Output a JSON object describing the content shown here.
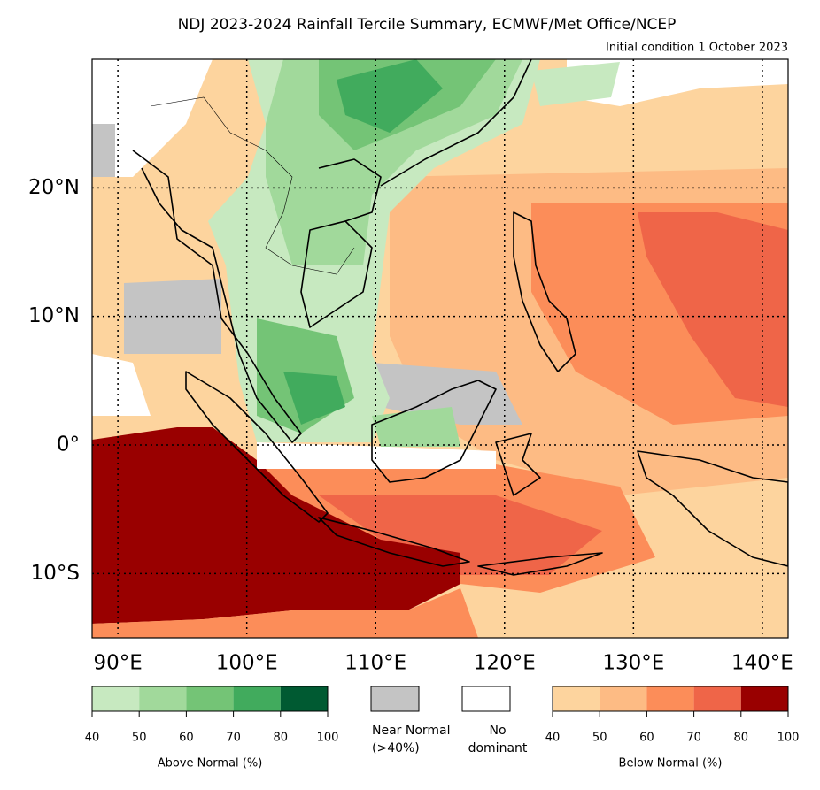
{
  "title": "NDJ 2023-2024 Rainfall Tercile Summary, ECMWF/Met Office/NCEP",
  "subtitle": "Initial condition 1 October 2023",
  "map": {
    "lon_range": [
      88,
      142
    ],
    "lat_range": [
      -15,
      30
    ],
    "lon_ticks": [
      {
        "value": 90,
        "label": "90°E"
      },
      {
        "value": 100,
        "label": "100°E"
      },
      {
        "value": 110,
        "label": "110°E"
      },
      {
        "value": 120,
        "label": "120°E"
      },
      {
        "value": 130,
        "label": "130°E"
      },
      {
        "value": 140,
        "label": "140°E"
      }
    ],
    "lat_ticks": [
      {
        "value": 20,
        "label": "20°N"
      },
      {
        "value": 10,
        "label": "10°N"
      },
      {
        "value": 0,
        "label": "0°"
      },
      {
        "value": -10,
        "label": "10°S"
      }
    ],
    "grid": true
  },
  "legend": {
    "above": {
      "label": "Above Normal (%)",
      "ticks": [
        40,
        50,
        60,
        70,
        80,
        100
      ],
      "colors": [
        "#c7e9c0",
        "#a1d99b",
        "#74c476",
        "#41ab5d",
        "#005a32"
      ]
    },
    "near": {
      "lines": [
        "Near Normal",
        "(>40%)"
      ],
      "color": "#c4c4c4"
    },
    "none": {
      "lines": [
        "No",
        "dominant"
      ],
      "color": "#ffffff"
    },
    "below": {
      "label": "Below Normal (%)",
      "ticks": [
        40,
        50,
        60,
        70,
        80,
        100
      ],
      "colors": [
        "#fdd49e",
        "#fdbb84",
        "#fc8d59",
        "#ef6548",
        "#990000"
      ]
    }
  }
}
